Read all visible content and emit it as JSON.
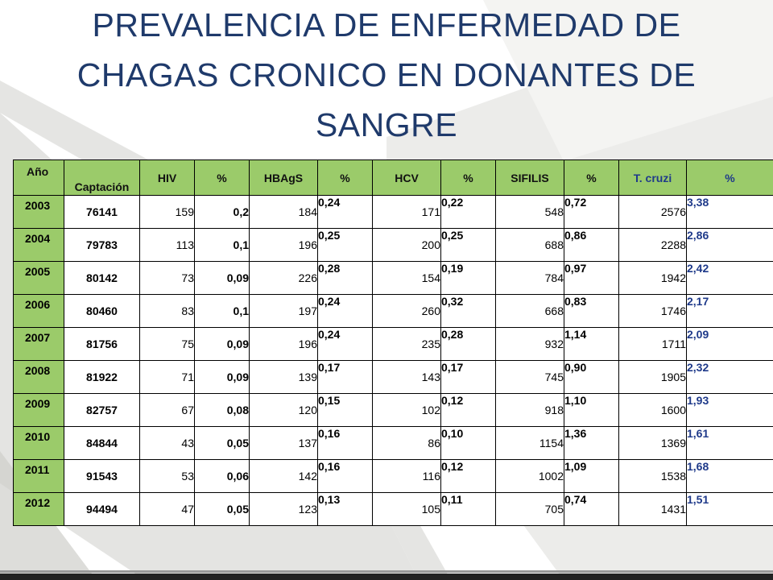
{
  "title_lines": [
    "PREVALENCIA DE ENFERMEDAD DE",
    "CHAGAS CRONICO EN DONANTES DE",
    "SANGRE"
  ],
  "table": {
    "headers": [
      "Año",
      "Captación",
      "HIV",
      "%",
      "HBAgS",
      "%",
      "HCV",
      "%",
      "SIFILIS",
      "%",
      "T. cruzi",
      "%"
    ],
    "rows": [
      [
        "2003",
        "76141",
        "159",
        "0,2",
        "184",
        "0,24",
        "171",
        "0,22",
        "548",
        "0,72",
        "2576",
        "3,38"
      ],
      [
        "2004",
        "79783",
        "113",
        "0,1",
        "196",
        "0,25",
        "200",
        "0,25",
        "688",
        "0,86",
        "2288",
        "2,86"
      ],
      [
        "2005",
        "80142",
        "73",
        "0,09",
        "226",
        "0,28",
        "154",
        "0,19",
        "784",
        "0,97",
        "1942",
        "2,42"
      ],
      [
        "2006",
        "80460",
        "83",
        "0,1",
        "197",
        "0,24",
        "260",
        "0,32",
        "668",
        "0,83",
        "1746",
        "2,17"
      ],
      [
        "2007",
        "81756",
        "75",
        "0,09",
        "196",
        "0,24",
        "235",
        "0,28",
        "932",
        "1,14",
        "1711",
        "2,09"
      ],
      [
        "2008",
        "81922",
        "71",
        "0,09",
        "139",
        "0,17",
        "143",
        "0,17",
        "745",
        "0,90",
        "1905",
        "2,32"
      ],
      [
        "2009",
        "82757",
        "67",
        "0,08",
        "120",
        "0,15",
        "102",
        "0,12",
        "918",
        "1,10",
        "1600",
        "1,93"
      ],
      [
        "2010",
        "84844",
        "43",
        "0,05",
        "137",
        "0,16",
        "86",
        "0,10",
        "1154",
        "1,36",
        "1369",
        "1,61"
      ],
      [
        "2011",
        "91543",
        "53",
        "0,06",
        "142",
        "0,16",
        "116",
        "0,12",
        "1002",
        "1,09",
        "1538",
        "1,68"
      ],
      [
        "2012",
        "94494",
        "47",
        "0,05",
        "123",
        "0,13",
        "105",
        "0,11",
        "705",
        "0,74",
        "1431",
        "1,51"
      ]
    ]
  },
  "colors": {
    "title": "#1f3a6b",
    "header_green": "#9bcb6a",
    "tcruzi_blue": "#1f3a8a"
  }
}
